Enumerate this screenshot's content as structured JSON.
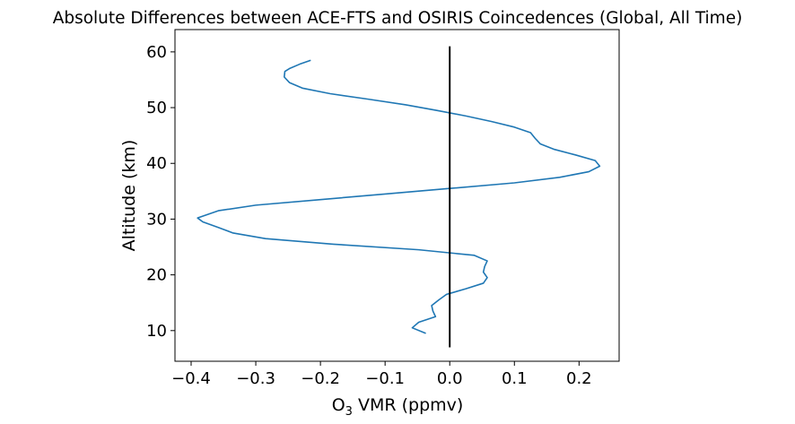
{
  "chart_data": {
    "type": "line",
    "title": "Absolute Differences between ACE-FTS and OSIRIS Coincedences (Global, All Time)",
    "xlabel_main": "O",
    "xlabel_sub": "3",
    "xlabel_rest": " VMR (ppmv)",
    "ylabel": "Altitude (km)",
    "xlim": [
      -0.425,
      0.262
    ],
    "ylim": [
      4.5,
      64
    ],
    "xticks": [
      -0.4,
      -0.3,
      -0.2,
      -0.1,
      0.0,
      0.1,
      0.2
    ],
    "xtick_labels": [
      "−0.4",
      "−0.3",
      "−0.2",
      "−0.1",
      "0.0",
      "0.1",
      "0.2"
    ],
    "yticks": [
      10,
      20,
      30,
      40,
      50,
      60
    ],
    "ytick_labels": [
      "10",
      "20",
      "30",
      "40",
      "50",
      "60"
    ],
    "grid": false,
    "series": [
      {
        "color": "#1f77b4",
        "points": [
          [
            -0.037,
            9.5
          ],
          [
            -0.058,
            10.5
          ],
          [
            -0.048,
            11.5
          ],
          [
            -0.022,
            12.5
          ],
          [
            -0.026,
            13.5
          ],
          [
            -0.028,
            14.5
          ],
          [
            -0.017,
            15.5
          ],
          [
            -0.005,
            16.5
          ],
          [
            0.025,
            17.5
          ],
          [
            0.052,
            18.5
          ],
          [
            0.058,
            19.5
          ],
          [
            0.052,
            20.5
          ],
          [
            0.054,
            21.5
          ],
          [
            0.058,
            22.5
          ],
          [
            0.038,
            23.5
          ],
          [
            -0.048,
            24.5
          ],
          [
            -0.18,
            25.5
          ],
          [
            -0.285,
            26.5
          ],
          [
            -0.335,
            27.5
          ],
          [
            -0.358,
            28.5
          ],
          [
            -0.382,
            29.5
          ],
          [
            -0.39,
            30.2
          ],
          [
            -0.358,
            31.5
          ],
          [
            -0.3,
            32.5
          ],
          [
            -0.2,
            33.5
          ],
          [
            -0.1,
            34.5
          ],
          [
            0.0,
            35.5
          ],
          [
            0.1,
            36.5
          ],
          [
            0.17,
            37.5
          ],
          [
            0.215,
            38.5
          ],
          [
            0.232,
            39.5
          ],
          [
            0.225,
            40.5
          ],
          [
            0.195,
            41.5
          ],
          [
            0.162,
            42.5
          ],
          [
            0.14,
            43.5
          ],
          [
            0.132,
            44.5
          ],
          [
            0.125,
            45.5
          ],
          [
            0.1,
            46.5
          ],
          [
            0.065,
            47.5
          ],
          [
            0.025,
            48.5
          ],
          [
            -0.02,
            49.5
          ],
          [
            -0.068,
            50.5
          ],
          [
            -0.125,
            51.5
          ],
          [
            -0.185,
            52.5
          ],
          [
            -0.228,
            53.5
          ],
          [
            -0.248,
            54.5
          ],
          [
            -0.256,
            55.5
          ],
          [
            -0.255,
            56.5
          ],
          [
            -0.248,
            57.0
          ],
          [
            -0.232,
            57.8
          ],
          [
            -0.215,
            58.5
          ]
        ]
      },
      {
        "color": "#000000",
        "points": [
          [
            0.0,
            7.0
          ],
          [
            0.0,
            61.0
          ]
        ]
      }
    ]
  }
}
